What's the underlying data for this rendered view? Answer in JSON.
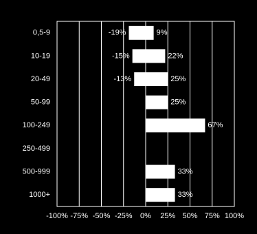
{
  "chart_data": {
    "type": "diverging-bar",
    "categories": [
      "0,5-9",
      "10-19",
      "20-49",
      "50-99",
      "100-249",
      "250-499",
      "500-999",
      "1000+"
    ],
    "series": [
      {
        "color": "#ffffff",
        "values": [
          -19,
          -15,
          -13,
          null,
          null,
          null,
          null,
          null
        ],
        "value_labels": [
          "-19%",
          "-15%",
          "-13%",
          null,
          null,
          null,
          null,
          null
        ]
      },
      {
        "color": "#ffffff",
        "values": [
          9,
          22,
          25,
          25,
          67,
          null,
          33,
          33
        ],
        "value_labels": [
          "9%",
          "22%",
          "25%",
          "25%",
          "67%",
          null,
          "33%",
          "33%"
        ]
      }
    ],
    "xlim": [
      -100,
      100
    ],
    "xticks": [
      {
        "value": -100,
        "label": "-100%"
      },
      {
        "value": -75,
        "label": "-75%"
      },
      {
        "value": -50,
        "label": "-50%"
      },
      {
        "value": -25,
        "label": "-25%"
      },
      {
        "value": 0,
        "label": "0%"
      },
      {
        "value": 25,
        "label": "25%"
      },
      {
        "value": 50,
        "label": "50%"
      },
      {
        "value": 75,
        "label": "75%"
      },
      {
        "value": 100,
        "label": "100%"
      }
    ],
    "grid": true
  }
}
